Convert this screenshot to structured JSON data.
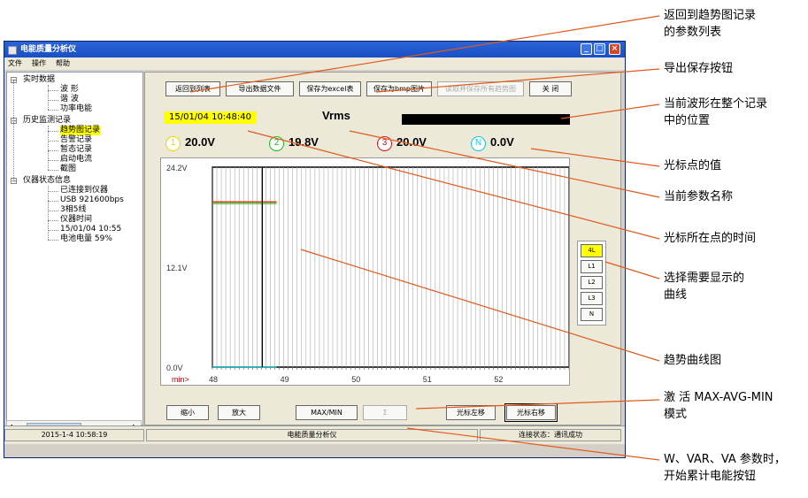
{
  "window": {
    "title": "电能质量分析仪",
    "controls": [
      "minimize",
      "maximize",
      "close"
    ]
  },
  "menubar": [
    "文件",
    "操作",
    "帮助"
  ],
  "tree": {
    "items": [
      {
        "label": "实时数据",
        "level": 0,
        "expand": "−"
      },
      {
        "label": "波 形",
        "level": 1
      },
      {
        "label": "谐 波",
        "level": 1
      },
      {
        "label": "功率电能",
        "level": 1
      },
      {
        "label": "历史监测记录",
        "level": 0,
        "expand": "−"
      },
      {
        "label": "趋势图记录",
        "level": 1,
        "selected": true
      },
      {
        "label": "告警记录",
        "level": 1
      },
      {
        "label": "暂态记录",
        "level": 1
      },
      {
        "label": "启动电流",
        "level": 1
      },
      {
        "label": "截图",
        "level": 1
      },
      {
        "label": "仪器状态信息",
        "level": 0,
        "expand": "−"
      },
      {
        "label": "已连接到仪器",
        "level": 1
      },
      {
        "label": "USB 921600bps",
        "level": 1
      },
      {
        "label": "3相5线",
        "level": 1
      },
      {
        "label": "仪器时间",
        "level": 1
      },
      {
        "label": "15/01/04 10:55",
        "level": 1
      },
      {
        "label": "电池电量 59%",
        "level": 1
      }
    ]
  },
  "toolbar": {
    "buttons": [
      {
        "label": "返回到列表",
        "enabled": true
      },
      {
        "label": "导出数据文件",
        "enabled": true
      },
      {
        "label": "保存为excel表",
        "enabled": true
      },
      {
        "label": "保存为bmp图片",
        "enabled": true
      },
      {
        "label": "读取并保存所有趋势图",
        "enabled": false
      },
      {
        "label": "关 闭",
        "enabled": true
      }
    ]
  },
  "cursor": {
    "time": "15/01/04 10:48:40",
    "param": "Vrms",
    "position_fraction": 1.0,
    "values": [
      {
        "ch": "1",
        "value": "20.0V",
        "color": "#f2d300"
      },
      {
        "ch": "2",
        "value": "19.8V",
        "color": "#16c016"
      },
      {
        "ch": "3",
        "value": "20.0V",
        "color": "#e01010"
      },
      {
        "ch": "N",
        "value": "0.0V",
        "color": "#10c8d8"
      }
    ]
  },
  "chart_data": {
    "type": "line",
    "xlabel": "min>",
    "x_ticks": [
      "48",
      "49",
      "50",
      "51",
      "52"
    ],
    "xlim": [
      48,
      53
    ],
    "y_ticks": [
      "24.2V",
      "12.1V",
      "0.0V"
    ],
    "ylim": [
      0,
      24.2
    ],
    "cursor_x": 48.7,
    "series": [
      {
        "ch": "1",
        "color": "#f2d300",
        "x": [
          48,
          48.9
        ],
        "y": [
          20.0,
          20.0
        ]
      },
      {
        "ch": "2",
        "color": "#16c016",
        "x": [
          48,
          48.9
        ],
        "y": [
          19.8,
          19.8
        ]
      },
      {
        "ch": "3",
        "color": "#e01010",
        "x": [
          48,
          48.9
        ],
        "y": [
          20.0,
          20.0
        ]
      },
      {
        "ch": "N",
        "color": "#10c8d8",
        "x": [
          48,
          48.9
        ],
        "y": [
          0.0,
          0.0
        ]
      }
    ]
  },
  "curve_select": [
    {
      "label": "4L",
      "active": true
    },
    {
      "label": "L1"
    },
    {
      "label": "L2"
    },
    {
      "label": "L3"
    },
    {
      "label": "N"
    }
  ],
  "bottom_buttons": [
    {
      "label": "缩小",
      "enabled": true
    },
    {
      "label": "放大",
      "enabled": true
    },
    {
      "label": "MAX/MIN",
      "enabled": true
    },
    {
      "label": "Σ",
      "enabled": false
    },
    {
      "label": "光标左移",
      "enabled": true
    },
    {
      "label": "光标右移",
      "enabled": true,
      "selected": true
    }
  ],
  "statusbar": {
    "datetime": "2015-1-4 10:58:19",
    "app": "电能质量分析仪",
    "connection": "连接状态：通讯成功"
  },
  "annotations": [
    {
      "lines": [
        "返回到趋势图记录",
        "的参数列表"
      ]
    },
    {
      "lines": [
        "导出保存按钮"
      ]
    },
    {
      "lines": [
        "当前波形在整个记录",
        "中的位置"
      ]
    },
    {
      "lines": [
        "光标点的值"
      ]
    },
    {
      "lines": [
        "当前参数名称"
      ]
    },
    {
      "lines": [
        "光标所在点的时间"
      ]
    },
    {
      "lines": [
        "选择需要显示的",
        "曲线"
      ]
    },
    {
      "lines": [
        "趋势曲线图"
      ]
    },
    {
      "lines": [
        "激 活  MAX-AVG-MIN",
        "模式"
      ]
    },
    {
      "lines": [
        "W、VAR、VA 参数时，",
        "开始累计电能按钮"
      ]
    }
  ]
}
